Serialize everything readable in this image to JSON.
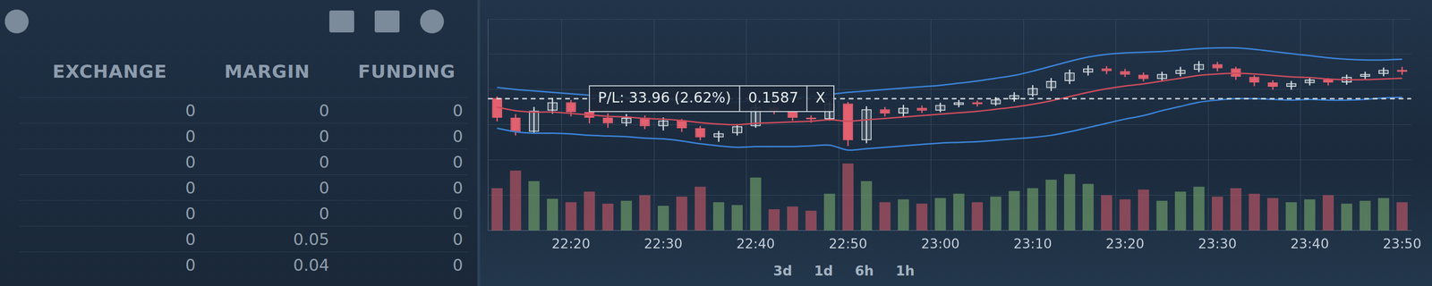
{
  "chart_data": {
    "type": "candlestick",
    "categories": [
      null,
      null,
      null,
      null,
      "22:20",
      null,
      null,
      null,
      null,
      "22:30",
      null,
      null,
      null,
      null,
      "22:40",
      null,
      null,
      null,
      null,
      "22:50",
      null,
      null,
      null,
      null,
      "23:00",
      null,
      null,
      null,
      null,
      "23:10",
      null,
      null,
      null,
      null,
      "23:20",
      null,
      null,
      null,
      null,
      "23:30",
      null,
      null,
      null,
      null,
      "23:40",
      null,
      null,
      null,
      null,
      "23:50"
    ],
    "open": [
      0.1588,
      0.156,
      0.154,
      0.157,
      0.1582,
      0.1568,
      0.156,
      0.1552,
      0.156,
      0.1548,
      0.1556,
      0.1545,
      0.1532,
      0.1538,
      0.1548,
      0.1575,
      0.1568,
      0.156,
      0.1558,
      0.158,
      0.1528,
      0.1572,
      0.1566,
      0.1574,
      0.157,
      0.1578,
      0.1582,
      0.1579,
      0.1586,
      0.1592,
      0.1602,
      0.1612,
      0.1624,
      0.163,
      0.1626,
      0.1621,
      0.1615,
      0.1622,
      0.1628,
      0.1636,
      0.163,
      0.1618,
      0.161,
      0.1604,
      0.1609,
      0.1614,
      0.161,
      0.1618,
      0.1622,
      0.1628
    ],
    "high": [
      0.159,
      0.1565,
      0.1575,
      0.1588,
      0.1585,
      0.1572,
      0.1566,
      0.1565,
      0.1563,
      0.156,
      0.1558,
      0.1548,
      0.1541,
      0.1551,
      0.158,
      0.1578,
      0.157,
      0.1563,
      0.1583,
      0.1582,
      0.1576,
      0.1575,
      0.1578,
      0.1577,
      0.1581,
      0.1585,
      0.1584,
      0.1589,
      0.1596,
      0.1606,
      0.1616,
      0.1628,
      0.1634,
      0.1633,
      0.1629,
      0.1624,
      0.1625,
      0.1632,
      0.164,
      0.1639,
      0.1632,
      0.162,
      0.1613,
      0.1612,
      0.1617,
      0.1616,
      0.1621,
      0.1625,
      0.1631,
      0.1632
    ],
    "low": [
      0.1555,
      0.1535,
      0.1538,
      0.1566,
      0.1562,
      0.1552,
      0.1546,
      0.1548,
      0.1544,
      0.1542,
      0.154,
      0.1528,
      0.1526,
      0.1535,
      0.1546,
      0.1565,
      0.1556,
      0.1553,
      0.1556,
      0.152,
      0.1524,
      0.1562,
      0.1562,
      0.1567,
      0.1568,
      0.1575,
      0.1576,
      0.1577,
      0.1583,
      0.159,
      0.1598,
      0.1608,
      0.162,
      0.1622,
      0.1618,
      0.1612,
      0.1612,
      0.1619,
      0.1625,
      0.1626,
      0.1614,
      0.1605,
      0.16,
      0.16,
      0.1606,
      0.1606,
      0.1607,
      0.1615,
      0.1619,
      0.1621
    ],
    "close": [
      0.156,
      0.154,
      0.157,
      0.1582,
      0.1568,
      0.156,
      0.1552,
      0.156,
      0.1548,
      0.1556,
      0.1545,
      0.1532,
      0.1538,
      0.1548,
      0.1575,
      0.1568,
      0.156,
      0.1558,
      0.158,
      0.1528,
      0.1572,
      0.1566,
      0.1574,
      0.157,
      0.1578,
      0.1582,
      0.1579,
      0.1586,
      0.1592,
      0.1602,
      0.1612,
      0.1624,
      0.163,
      0.1626,
      0.1621,
      0.1615,
      0.1622,
      0.1628,
      0.1636,
      0.163,
      0.1618,
      0.161,
      0.1604,
      0.1609,
      0.1614,
      0.161,
      0.1618,
      0.1622,
      0.1628,
      0.1625
    ],
    "upper_band": [
      0.1603,
      0.16,
      0.1598,
      0.1596,
      0.1594,
      0.1592,
      0.159,
      0.1589,
      0.1587,
      0.1586,
      0.1585,
      0.1583,
      0.1582,
      0.1582,
      0.1585,
      0.1587,
      0.1589,
      0.159,
      0.1593,
      0.1596,
      0.1598,
      0.16,
      0.1602,
      0.1604,
      0.1606,
      0.1609,
      0.1612,
      0.1616,
      0.162,
      0.1626,
      0.1633,
      0.164,
      0.1646,
      0.165,
      0.1652,
      0.1653,
      0.1654,
      0.1656,
      0.1658,
      0.1659,
      0.1659,
      0.1657,
      0.1654,
      0.1651,
      0.1648,
      0.1645,
      0.1643,
      0.1642,
      0.1642,
      0.1643
    ],
    "lower_band": [
      0.1545,
      0.154,
      0.1538,
      0.1538,
      0.1537,
      0.1535,
      0.1534,
      0.1533,
      0.1531,
      0.153,
      0.1527,
      0.1523,
      0.152,
      0.1518,
      0.1519,
      0.1519,
      0.1519,
      0.152,
      0.1521,
      0.1514,
      0.1516,
      0.1518,
      0.152,
      0.1522,
      0.1524,
      0.1525,
      0.1526,
      0.1528,
      0.153,
      0.1532,
      0.1535,
      0.154,
      0.1546,
      0.1552,
      0.1558,
      0.1563,
      0.157,
      0.1576,
      0.1582,
      0.1585,
      0.1587,
      0.1587,
      0.1586,
      0.1585,
      0.1586,
      0.1585,
      0.1585,
      0.1586,
      0.1588,
      0.1589
    ],
    "moving_average": [
      0.1575,
      0.157,
      0.1568,
      0.1568,
      0.1566,
      0.1564,
      0.1562,
      0.1561,
      0.1559,
      0.1558,
      0.1556,
      0.1553,
      0.1551,
      0.155,
      0.1552,
      0.1553,
      0.1554,
      0.1555,
      0.1557,
      0.1555,
      0.1557,
      0.1559,
      0.1561,
      0.1563,
      0.1565,
      0.1567,
      0.1569,
      0.1572,
      0.1575,
      0.1579,
      0.1584,
      0.159,
      0.1596,
      0.1601,
      0.1605,
      0.1608,
      0.1612,
      0.1616,
      0.162,
      0.1622,
      0.1623,
      0.1622,
      0.162,
      0.1618,
      0.1617,
      0.1615,
      0.1614,
      0.1614,
      0.1615,
      0.1616
    ],
    "volume": [
      60,
      85,
      70,
      45,
      40,
      55,
      38,
      42,
      50,
      35,
      48,
      62,
      40,
      36,
      75,
      30,
      34,
      28,
      52,
      95,
      70,
      40,
      44,
      38,
      46,
      52,
      40,
      48,
      56,
      60,
      72,
      80,
      66,
      50,
      44,
      58,
      42,
      55,
      62,
      48,
      60,
      52,
      46,
      40,
      44,
      50,
      38,
      42,
      46,
      40
    ],
    "ylim": [
      0.14,
      0.17
    ],
    "yticks": [
      0.14,
      0.145,
      0.15,
      0.155,
      0.16,
      0.165,
      0.17
    ],
    "y2lim": [
      0,
      300
    ],
    "grid": true,
    "tick_labels": "x",
    "annotations": [
      {
        "text": "P/L: 33.96 (2.62%)",
        "price": 0.1587,
        "close_label": "X"
      }
    ]
  },
  "side_panel": {
    "columns": [
      "EXCHANGE",
      "MARGIN",
      "FUNDING"
    ],
    "rows": [
      [
        0,
        0,
        0
      ],
      [
        0,
        0,
        0
      ],
      [
        0,
        0,
        0
      ],
      [
        0,
        0,
        0
      ],
      [
        0,
        0,
        0
      ],
      [
        0,
        0.05,
        0
      ],
      [
        0,
        0.04,
        0
      ]
    ]
  },
  "range_buttons": [
    "3d",
    "1d",
    "6h",
    "1h"
  ]
}
